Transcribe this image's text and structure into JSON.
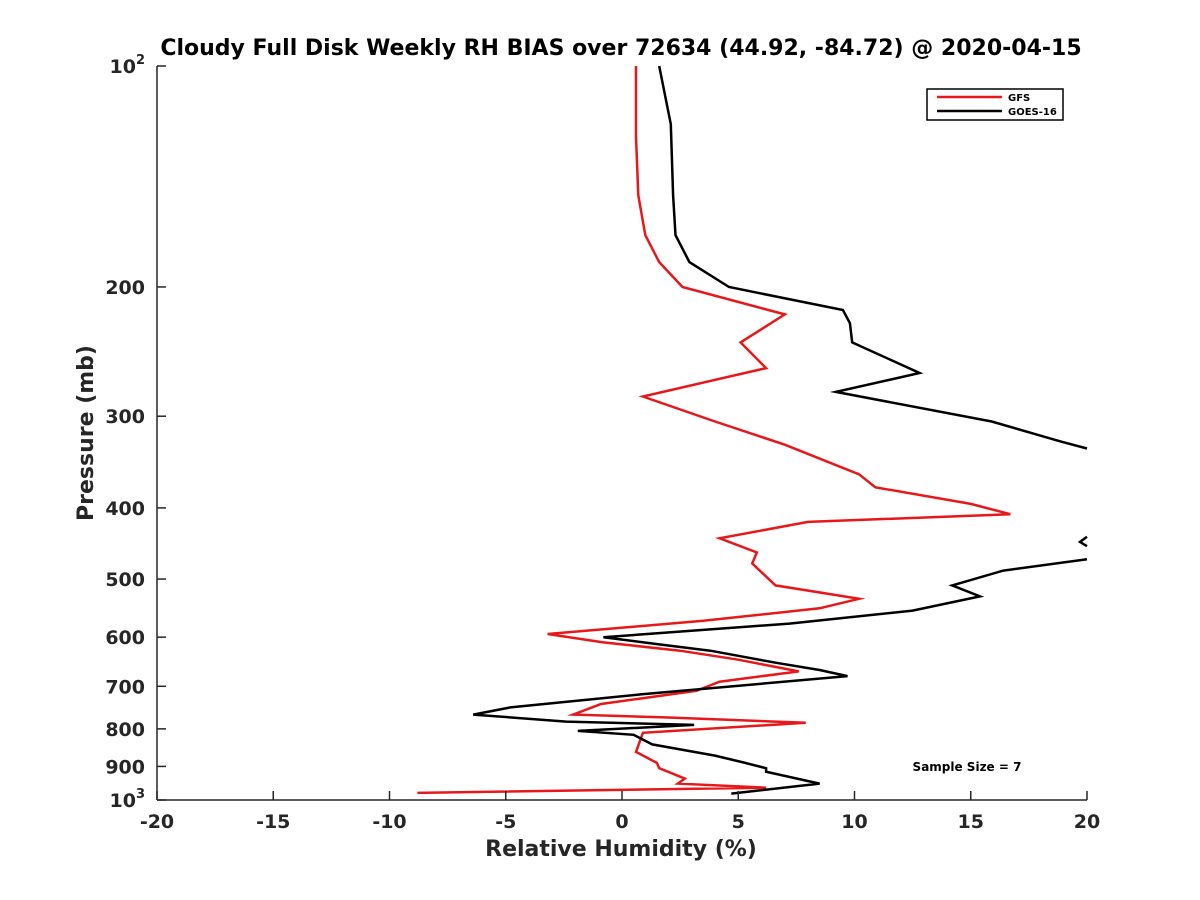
{
  "chart_data": {
    "type": "line",
    "title": "Cloudy Full Disk Weekly RH BIAS over 72634 (44.92, -84.72) @ 2020-04-15",
    "xlabel": "Relative Humidity (%)",
    "ylabel": "Pressure (mb)",
    "xlim": [
      -20,
      20
    ],
    "ylim": [
      100,
      1000
    ],
    "yscale": "log",
    "y_reversed": true,
    "x_ticks": [
      "-20",
      "-15",
      "-10",
      "-5",
      "0",
      "5",
      "10",
      "15",
      "20"
    ],
    "y_ticks": [
      {
        "value": 100,
        "base": "10",
        "exp": "2"
      },
      {
        "value": 200,
        "label": "200"
      },
      {
        "value": 300,
        "label": "300"
      },
      {
        "value": 400,
        "label": "400"
      },
      {
        "value": 500,
        "label": "500"
      },
      {
        "value": 600,
        "label": "600"
      },
      {
        "value": 700,
        "label": "700"
      },
      {
        "value": 800,
        "label": "800"
      },
      {
        "value": 900,
        "label": "900"
      },
      {
        "value": 1000,
        "base": "10",
        "exp": "3"
      }
    ],
    "legend_position": "top-right",
    "annotation": "Sample Size = 7",
    "series": [
      {
        "name": "GFS",
        "color": "#e8171a",
        "points": [
          [
            0.6,
            100
          ],
          [
            0.6,
            125
          ],
          [
            0.7,
            150
          ],
          [
            1.0,
            170
          ],
          [
            1.6,
            185
          ],
          [
            2.6,
            200
          ],
          [
            7.0,
            218
          ],
          [
            5.1,
            238
          ],
          [
            6.2,
            258
          ],
          [
            0.9,
            282
          ],
          [
            4.0,
            305
          ],
          [
            7.0,
            328
          ],
          [
            10.2,
            360
          ],
          [
            10.9,
            375
          ],
          [
            15.0,
            395
          ],
          [
            16.7,
            408
          ],
          [
            8.0,
            418
          ],
          [
            4.2,
            440
          ],
          [
            5.8,
            460
          ],
          [
            5.6,
            476
          ],
          [
            6.6,
            510
          ],
          [
            10.2,
            532
          ],
          [
            8.5,
            548
          ],
          [
            3.5,
            570
          ],
          [
            -3.2,
            594
          ],
          [
            -0.8,
            610
          ],
          [
            2.5,
            626
          ],
          [
            5.0,
            644
          ],
          [
            7.6,
            668
          ],
          [
            4.2,
            690
          ],
          [
            3.2,
            710
          ],
          [
            -0.9,
            740
          ],
          [
            -2.1,
            765
          ],
          [
            2.0,
            772
          ],
          [
            7.9,
            785
          ],
          [
            0.9,
            810
          ],
          [
            0.6,
            860
          ],
          [
            1.5,
            890
          ],
          [
            1.6,
            905
          ],
          [
            2.7,
            935
          ],
          [
            2.4,
            950
          ],
          [
            6.2,
            962
          ],
          [
            -8.8,
            978
          ]
        ]
      },
      {
        "name": "GOES-16",
        "color": "#000000",
        "points": [
          [
            1.6,
            100
          ],
          [
            2.1,
            120
          ],
          [
            2.2,
            150
          ],
          [
            2.3,
            170
          ],
          [
            2.9,
            185
          ],
          [
            4.6,
            200
          ],
          [
            9.5,
            215
          ],
          [
            9.8,
            224
          ],
          [
            9.9,
            238
          ],
          [
            12.8,
            262
          ],
          [
            9.2,
            278
          ],
          [
            15.9,
            305
          ],
          [
            18.9,
            325
          ],
          [
            20.0,
            332
          ],
          [
            null,
            null
          ],
          [
            20.0,
            438
          ],
          [
            19.7,
            445
          ],
          [
            20.0,
            451
          ],
          [
            null,
            null
          ],
          [
            20.0,
            470
          ],
          [
            16.4,
            487
          ],
          [
            14.2,
            510
          ],
          [
            15.4,
            528
          ],
          [
            12.5,
            552
          ],
          [
            7.2,
            575
          ],
          [
            -0.8,
            600
          ],
          [
            1.3,
            612
          ],
          [
            3.8,
            626
          ],
          [
            6.6,
            650
          ],
          [
            8.5,
            665
          ],
          [
            9.7,
            678
          ],
          [
            0.8,
            718
          ],
          [
            -4.8,
            748
          ],
          [
            -6.4,
            765
          ],
          [
            -2.4,
            782
          ],
          [
            3.1,
            790
          ],
          [
            -1.9,
            805
          ],
          [
            0.5,
            815
          ],
          [
            1.3,
            840
          ],
          [
            4.0,
            870
          ],
          [
            5.3,
            890
          ],
          [
            6.2,
            905
          ],
          [
            6.2,
            915
          ],
          [
            8.5,
            950
          ],
          [
            4.7,
            980
          ]
        ]
      }
    ]
  }
}
